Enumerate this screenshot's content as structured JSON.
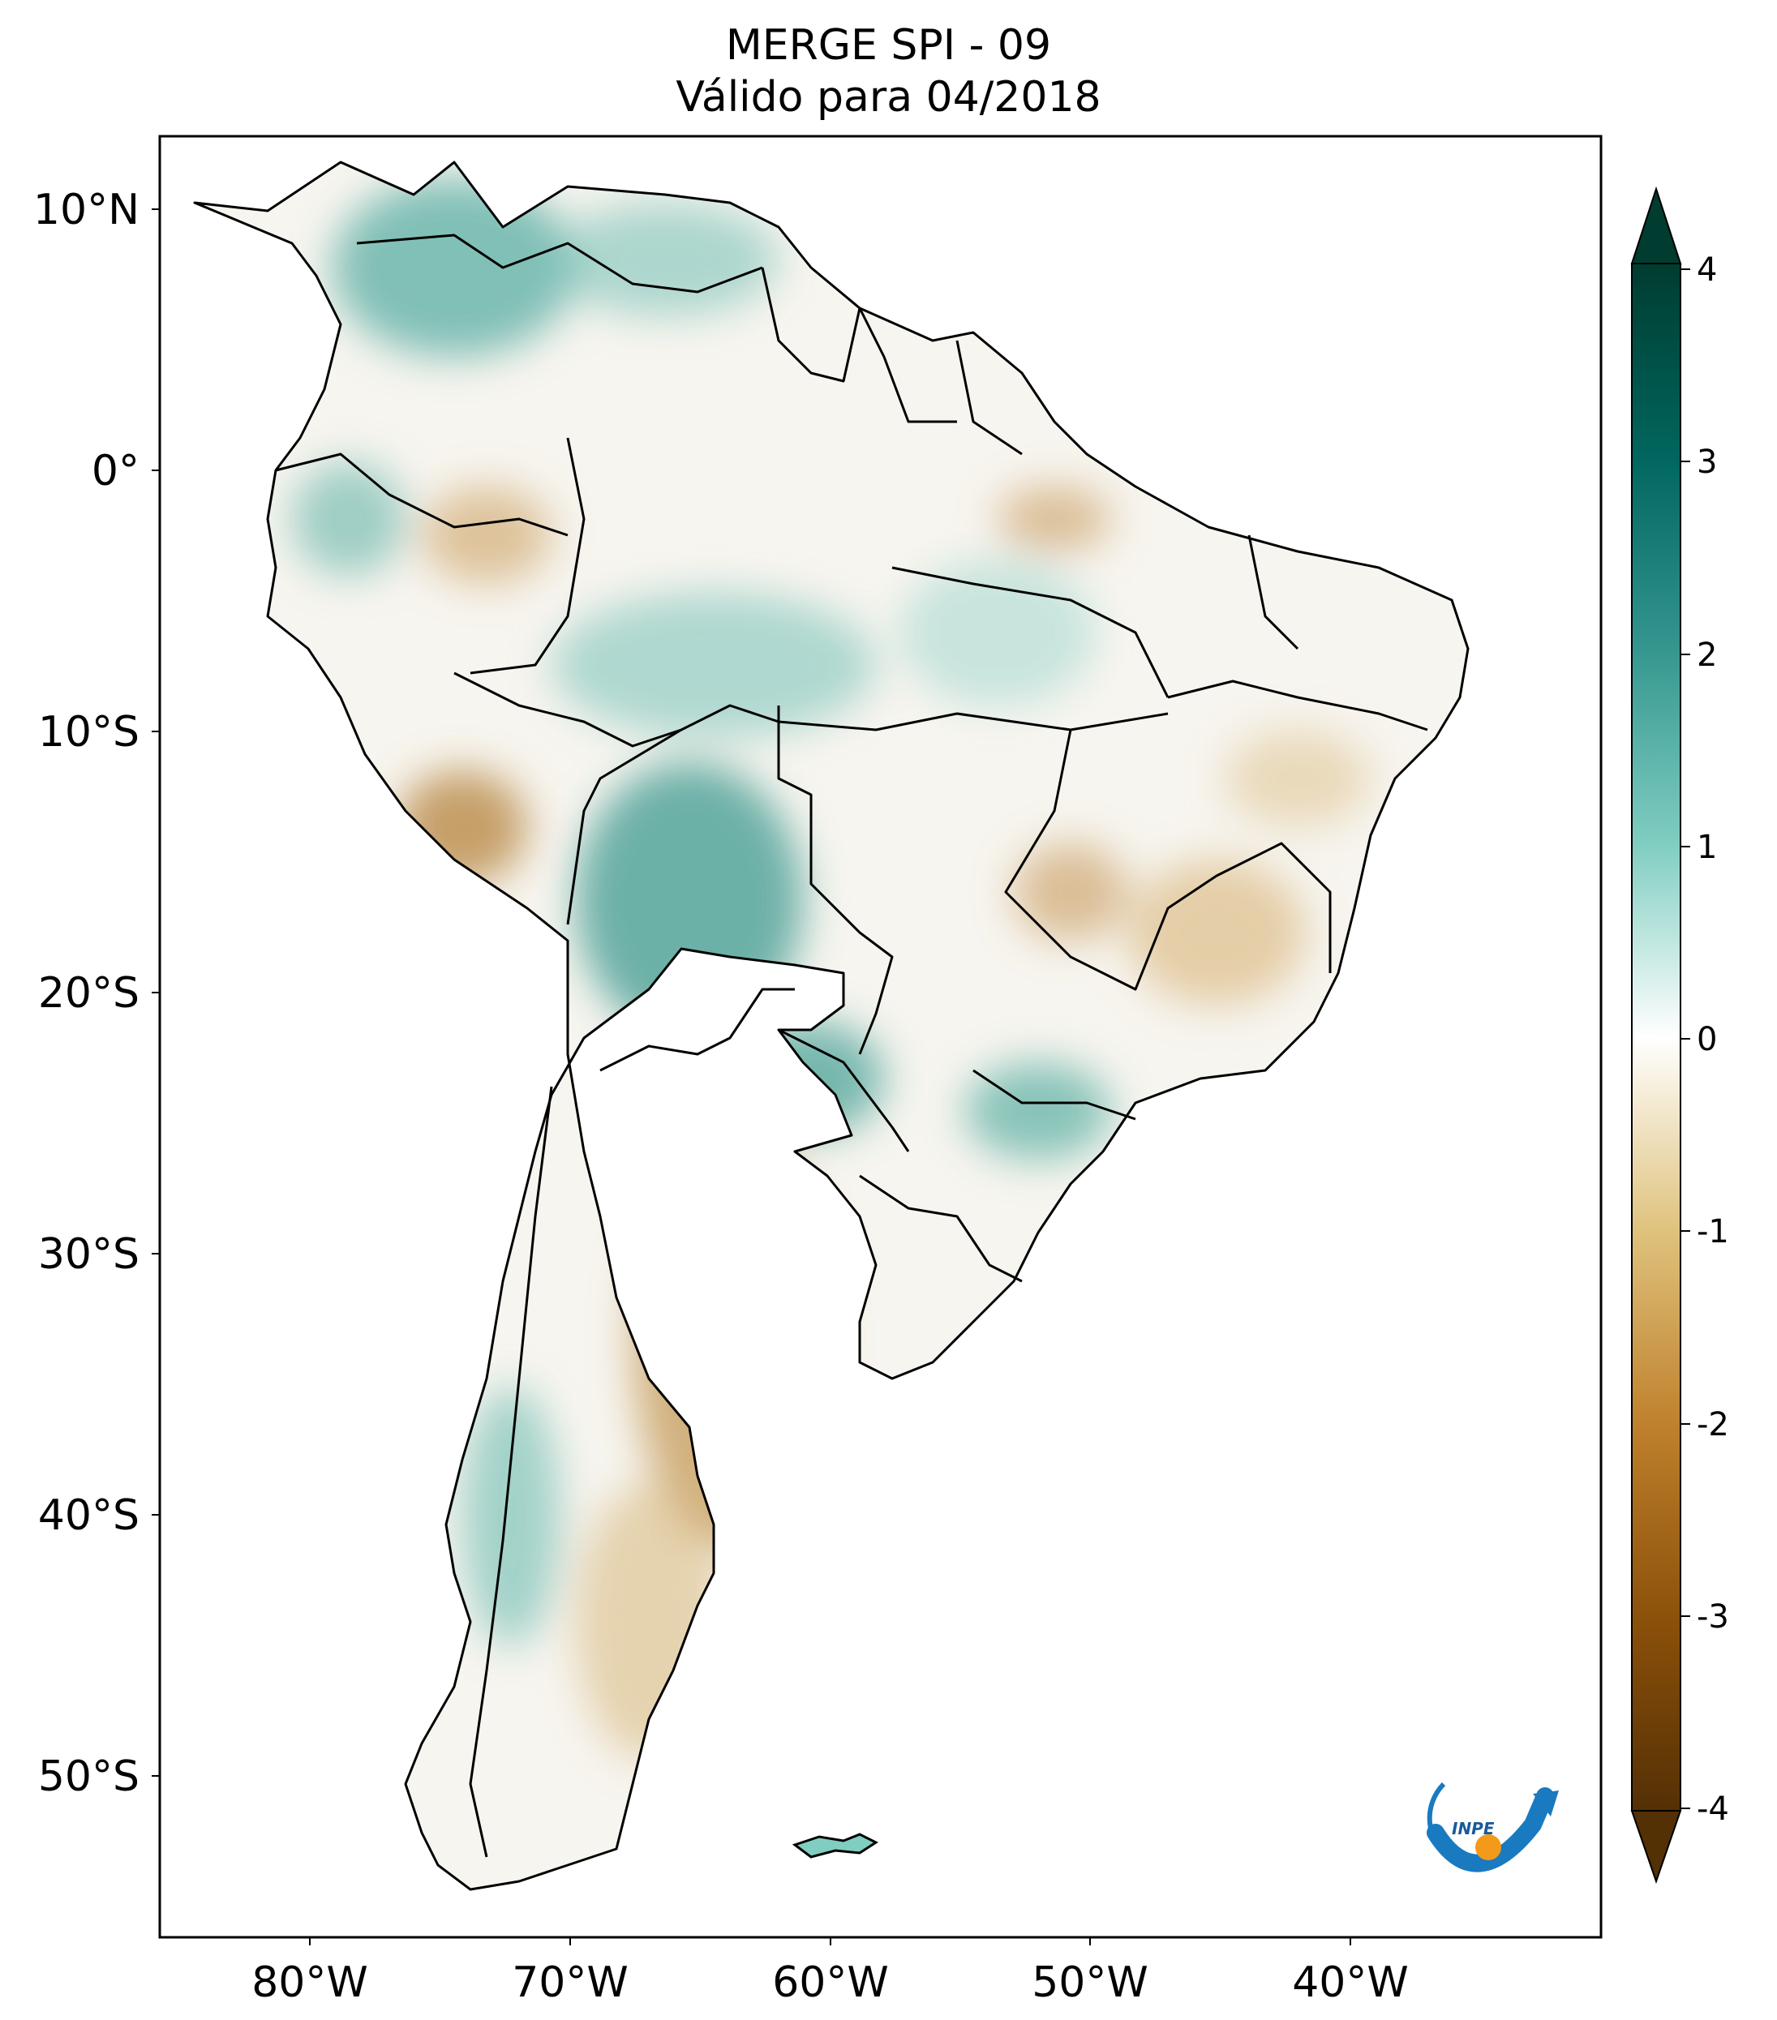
{
  "title": {
    "line1": "MERGE   SPI - 09",
    "line2": "Válido para 04/2018"
  },
  "map": {
    "lat_labels": [
      "10°N",
      "0°",
      "10°S",
      "20°S",
      "30°S",
      "40°S",
      "50°S"
    ],
    "lon_labels": [
      "80°W",
      "70°W",
      "60°W",
      "50°W",
      "40°W"
    ],
    "extent": {
      "lon_min": -86,
      "lon_max": -30,
      "lat_min": -56,
      "lat_max": 13
    }
  },
  "colorbar": {
    "ticks": [
      "4",
      "3",
      "2",
      "1",
      "0",
      "-1",
      "-2",
      "-3",
      "-4"
    ],
    "range": [
      -4,
      4
    ],
    "extend": "both",
    "colormap": "BrBG",
    "colors": {
      "neg4": "#543005",
      "neg3": "#8c510a",
      "neg2": "#bf812d",
      "neg1": "#dfc27d",
      "zero": "#ffffff",
      "pos1": "#80cdc1",
      "pos2": "#35978f",
      "pos3": "#01665e",
      "pos4": "#003c30"
    }
  },
  "logo": {
    "text": "INPE"
  }
}
